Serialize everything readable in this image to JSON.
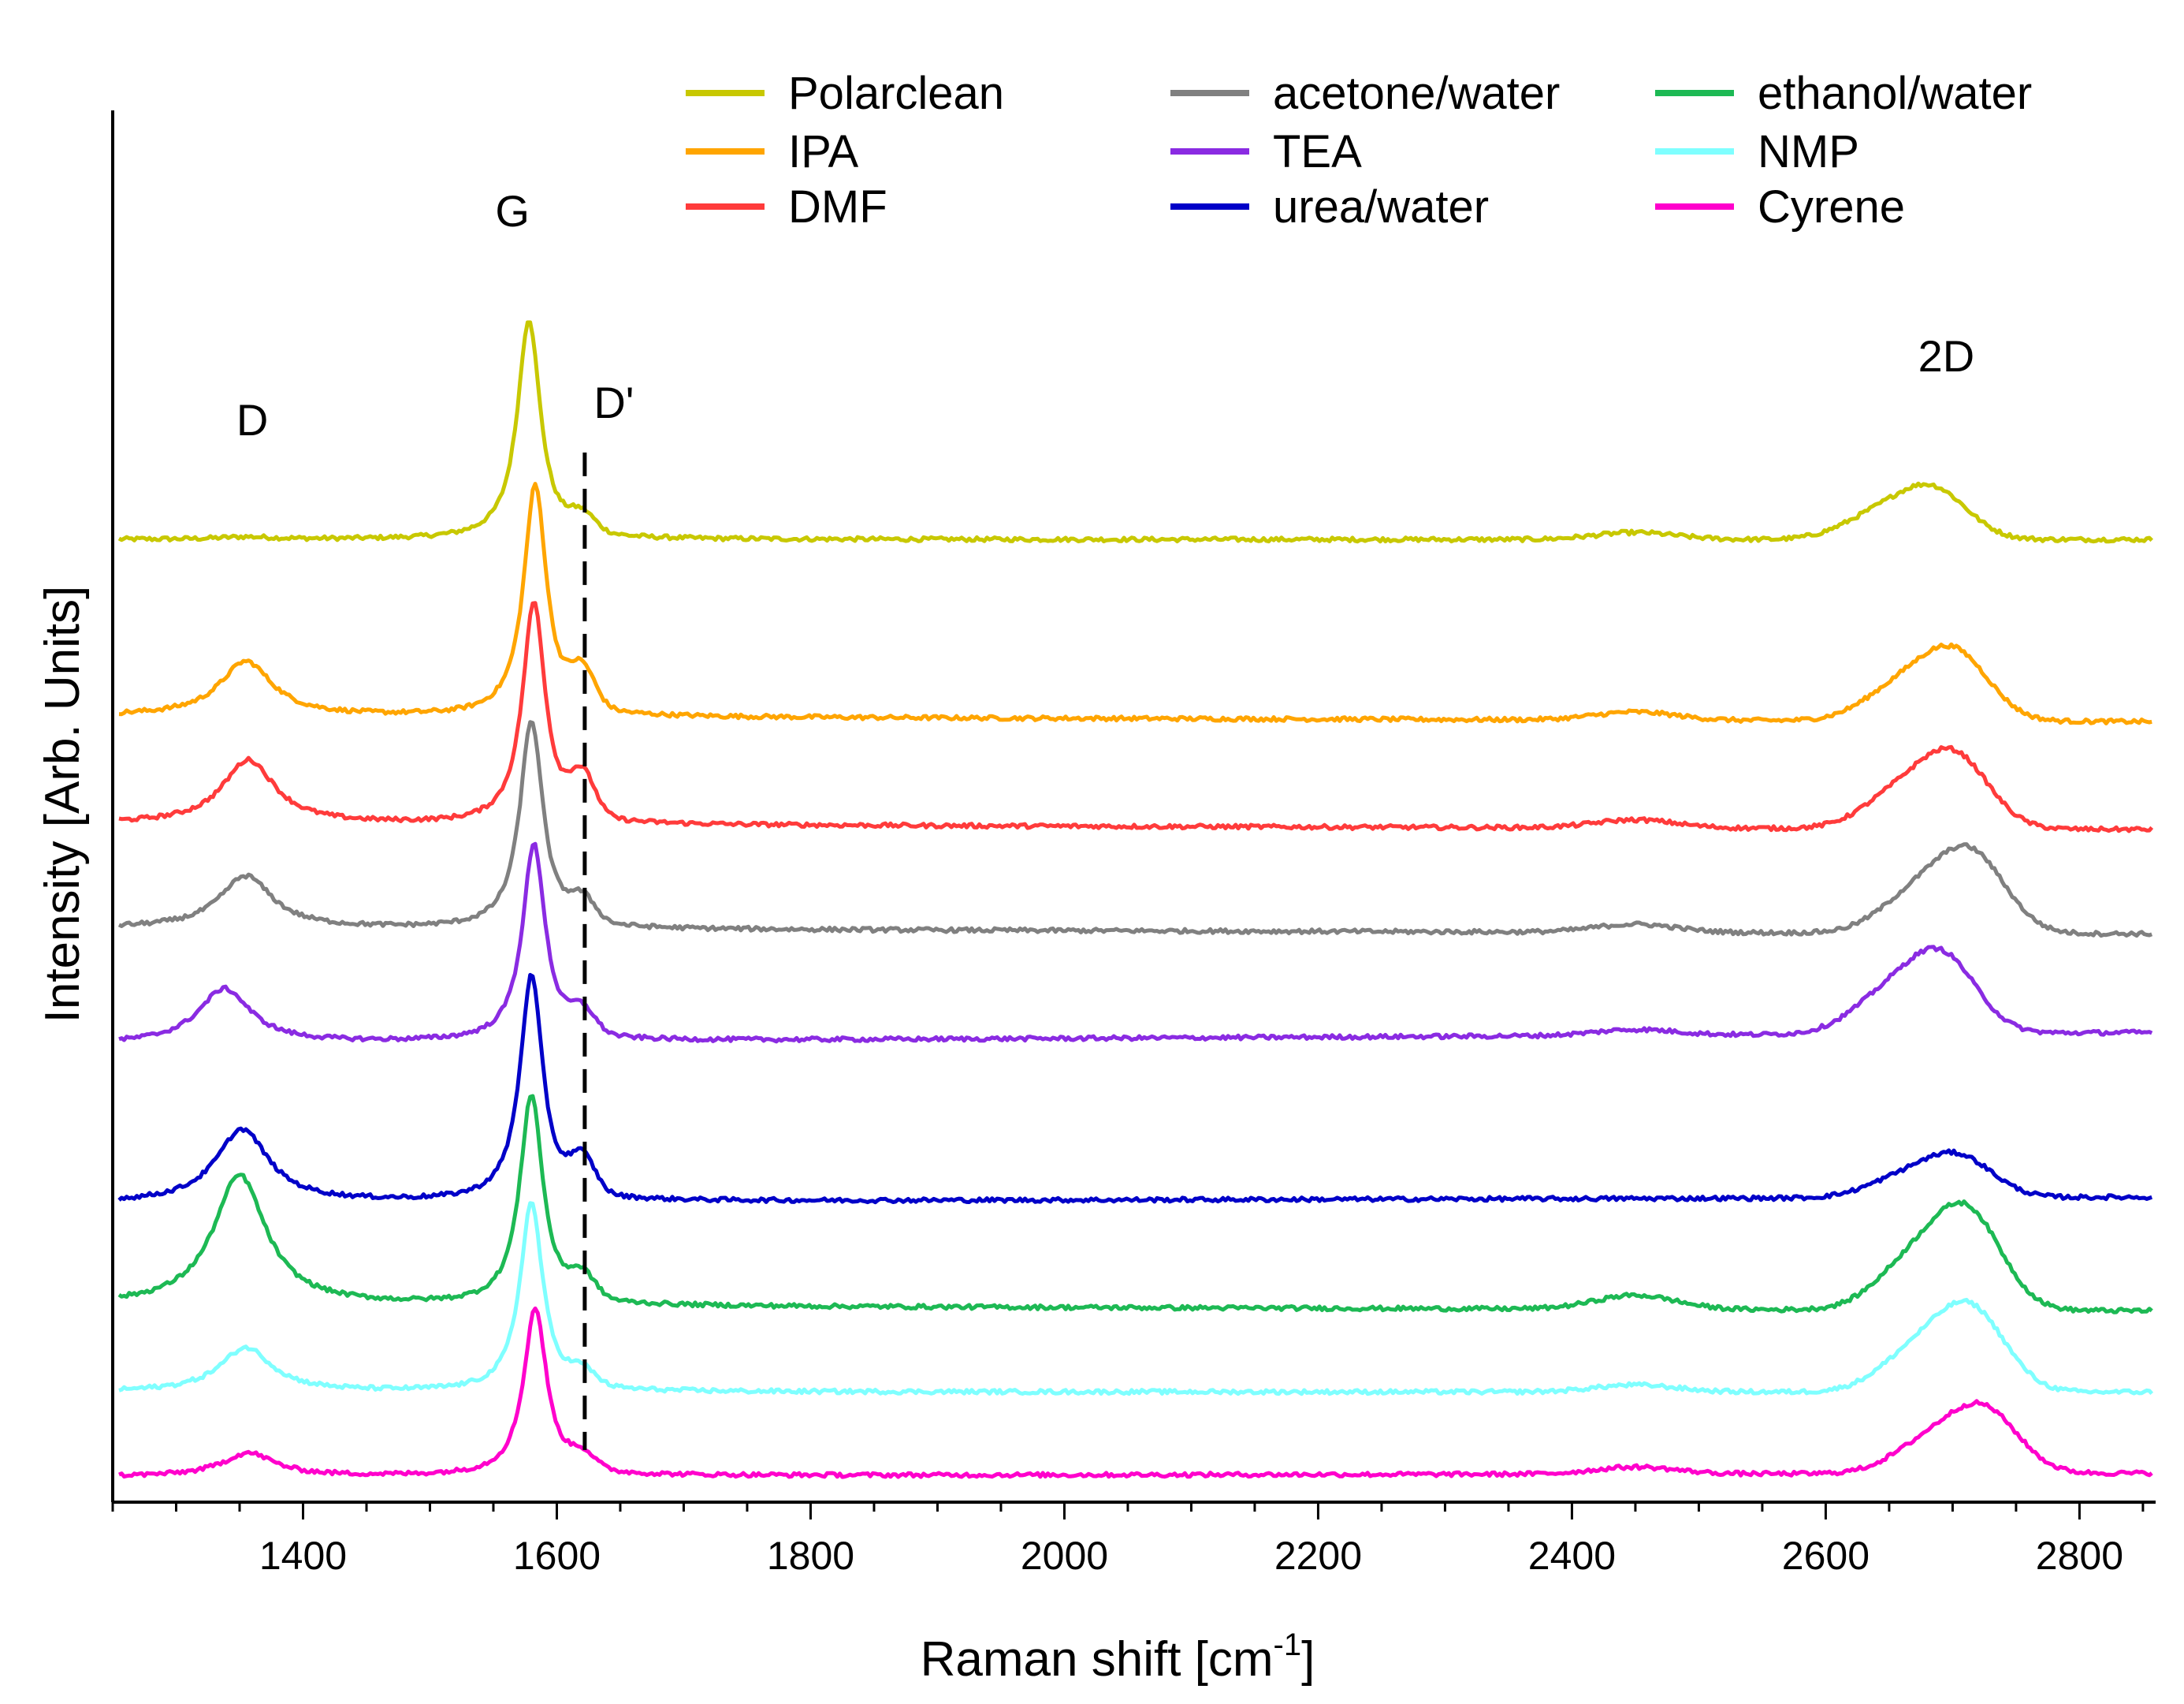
{
  "chart_data": {
    "type": "line",
    "title": "",
    "xlabel": "Raman shift [cm",
    "xlabel_superscript": "-1",
    "xlabel_suffix": "]",
    "ylabel": "Intensity [Arb. Units]",
    "xlim": [
      1250,
      2860
    ],
    "ylim": [
      0,
      12
    ],
    "x_ticks": [
      1400,
      1600,
      1800,
      2000,
      2200,
      2400,
      2600,
      2800
    ],
    "x_tick_labels": [
      "1400",
      "1600",
      "1800",
      "2000",
      "2200",
      "2400",
      "2600",
      "2800"
    ],
    "grid": false,
    "legend_position": "top",
    "peak_labels": [
      {
        "text": "D",
        "x": 1360,
        "y": 9.2
      },
      {
        "text": "G",
        "x": 1565,
        "y": 11.0
      },
      {
        "text": "D'",
        "x": 1645,
        "y": 9.35
      },
      {
        "text": "2D",
        "x": 2695,
        "y": 9.75
      }
    ],
    "dashed_line": {
      "x": 1622,
      "y_range": [
        0.45,
        9.05
      ]
    },
    "series": [
      {
        "name": "Polarclean",
        "color": "#c8c800",
        "baseline": 8.3,
        "slope": 0,
        "peaks": {
          "D": 0.02,
          "G": 1.9,
          "Dp": 0.15,
          "b2450": 0.06,
          "D2": 0.55
        },
        "D_pos": 1355,
        "G_pos": 1578,
        "D2_pos": 2685
      },
      {
        "name": "IPA",
        "color": "#ffa500",
        "baseline": 6.78,
        "slope": -0.05,
        "peaks": {
          "D": 0.47,
          "G": 2.0,
          "Dp": 0.32,
          "b2450": 0.07,
          "D2": 0.75
        },
        "D_pos": 1355,
        "G_pos": 1583,
        "D2_pos": 2702
      },
      {
        "name": "DMF",
        "color": "#ff3b3b",
        "baseline": 5.85,
        "slope": -0.05,
        "peaks": {
          "D": 0.55,
          "G": 1.92,
          "Dp": 0.35,
          "b2450": 0.07,
          "D2": 0.8
        },
        "D_pos": 1357,
        "G_pos": 1582,
        "D2_pos": 2702
      },
      {
        "name": "acetone/water",
        "color": "#808080",
        "baseline": 4.95,
        "slope": -0.05,
        "peaks": {
          "D": 0.45,
          "G": 1.8,
          "Dp": 0.2,
          "b2450": 0.07,
          "D2": 0.87
        },
        "D_pos": 1355,
        "G_pos": 1580,
        "D2_pos": 2715
      },
      {
        "name": "TEA",
        "color": "#8a2be2",
        "baseline": 3.95,
        "slope": 0.1,
        "peaks": {
          "D": 0.47,
          "G": 1.7,
          "Dp": 0.2,
          "b2450": 0.05,
          "D2": 0.85
        },
        "D_pos": 1338,
        "G_pos": 1582,
        "D2_pos": 2692
      },
      {
        "name": "urea/water",
        "color": "#0000c8",
        "baseline": 2.58,
        "slope": 0.05,
        "peaks": {
          "D": 0.63,
          "G": 1.95,
          "Dp": 0.3,
          "b2450": 0.0,
          "D2": 0.45
        },
        "D_pos": 1352,
        "G_pos": 1580,
        "D2_pos": 2705
      },
      {
        "name": "ethanol/water",
        "color": "#1db954",
        "baseline": 1.7,
        "slope": -0.05,
        "peaks": {
          "D": 1.12,
          "G": 1.82,
          "Dp": 0.2,
          "b2450": 0.12,
          "D2": 1.07
        },
        "D_pos": 1350,
        "G_pos": 1580,
        "D2_pos": 2712
      },
      {
        "name": "NMP",
        "color": "#7fffff",
        "baseline": 0.95,
        "slope": 0,
        "peaks": {
          "D": 0.38,
          "G": 1.63,
          "Dp": 0.13,
          "b2450": 0.06,
          "D2": 0.9
        },
        "D_pos": 1355,
        "G_pos": 1580,
        "D2_pos": 2715
      },
      {
        "name": "Cyrene",
        "color": "#ff00cc",
        "baseline": 0.22,
        "slope": 0.03,
        "peaks": {
          "D": 0.2,
          "G": 1.45,
          "Dp": 0.13,
          "b2450": 0.06,
          "D2": 0.7
        },
        "D_pos": 1357,
        "G_pos": 1583,
        "D2_pos": 2725
      }
    ]
  }
}
